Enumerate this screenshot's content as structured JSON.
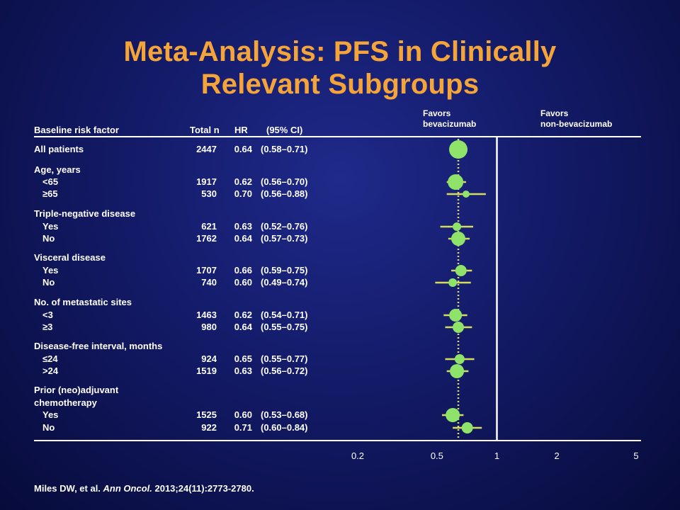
{
  "title_line1": "Meta-Analysis: PFS in Clinically",
  "title_line2": "Relevant Subgroups",
  "headers": {
    "factor": "Baseline risk factor",
    "n": "Total n",
    "hr": "HR",
    "ci": "(95% CI)",
    "favors_left_1": "Favors",
    "favors_left_2": "bevacizumab",
    "favors_right_1": "Favors",
    "favors_right_2": "non-bevacizumab"
  },
  "citation": {
    "authors": "Miles DW, et al. ",
    "journal": "Ann Oncol.",
    "details": " 2013;24(11):2773-2780."
  },
  "colors": {
    "title": "#f5a43a",
    "marker": "#8fe36b",
    "ci_line": "#d6dc5a",
    "reference_line": "#ffffff",
    "dotted_line": "#d9d96a"
  },
  "chart_data": {
    "type": "forest",
    "x_scale": "log",
    "xlim": [
      0.2,
      5
    ],
    "x_ticks": [
      "0.2",
      "0.5",
      "1",
      "2",
      "5"
    ],
    "reference_line": 1,
    "overall_line": 0.64,
    "groups": [
      "Age, years",
      "Triple-negative disease",
      "Visceral disease",
      "No. of metastatic sites",
      "Disease-free interval, months",
      "Prior (neo)adjuvant",
      "chemotherapy"
    ],
    "rows": [
      {
        "label": "All patients",
        "n": "2447",
        "hr_text": "0.64",
        "ci_text": "(0.58–0.71)",
        "hr": 0.64,
        "lo": 0.58,
        "hi": 0.71,
        "size": 13
      },
      {
        "label": "<65",
        "n": "1917",
        "hr_text": "0.62",
        "ci_text": "(0.56–0.70)",
        "hr": 0.62,
        "lo": 0.56,
        "hi": 0.7,
        "size": 11
      },
      {
        "label": "≥65",
        "n": "530",
        "hr_text": "0.70",
        "ci_text": "(0.56–0.88)",
        "hr": 0.7,
        "lo": 0.56,
        "hi": 0.88,
        "size": 5
      },
      {
        "label": "Yes",
        "n": "621",
        "hr_text": "0.63",
        "ci_text": "(0.52–0.76)",
        "hr": 0.63,
        "lo": 0.52,
        "hi": 0.76,
        "size": 6
      },
      {
        "label": "No",
        "n": "1762",
        "hr_text": "0.64",
        "ci_text": "(0.57–0.73)",
        "hr": 0.64,
        "lo": 0.57,
        "hi": 0.73,
        "size": 10
      },
      {
        "label": "Yes",
        "n": "1707",
        "hr_text": "0.66",
        "ci_text": "(0.59–0.75)",
        "hr": 0.66,
        "lo": 0.59,
        "hi": 0.75,
        "size": 8
      },
      {
        "label": "No",
        "n": "740",
        "hr_text": "0.60",
        "ci_text": "(0.49–0.74)",
        "hr": 0.6,
        "lo": 0.49,
        "hi": 0.74,
        "size": 6
      },
      {
        "label": "<3",
        "n": "1463",
        "hr_text": "0.62",
        "ci_text": "(0.54–0.71)",
        "hr": 0.62,
        "lo": 0.54,
        "hi": 0.71,
        "size": 9
      },
      {
        "label": "≥3",
        "n": "980",
        "hr_text": "0.64",
        "ci_text": "(0.55–0.75)",
        "hr": 0.64,
        "lo": 0.55,
        "hi": 0.75,
        "size": 8
      },
      {
        "label": "≤24",
        "n": "924",
        "hr_text": "0.65",
        "ci_text": "(0.55–0.77)",
        "hr": 0.65,
        "lo": 0.55,
        "hi": 0.77,
        "size": 7
      },
      {
        "label": ">24",
        "n": "1519",
        "hr_text": "0.63",
        "ci_text": "(0.56–0.72)",
        "hr": 0.63,
        "lo": 0.56,
        "hi": 0.72,
        "size": 10
      },
      {
        "label": "Yes",
        "n": "1525",
        "hr_text": "0.60",
        "ci_text": "(0.53–0.68)",
        "hr": 0.6,
        "lo": 0.53,
        "hi": 0.68,
        "size": 10
      },
      {
        "label": "No",
        "n": "922",
        "hr_text": "0.71",
        "ci_text": "(0.60–0.84)",
        "hr": 0.71,
        "lo": 0.6,
        "hi": 0.84,
        "size": 8
      }
    ]
  }
}
